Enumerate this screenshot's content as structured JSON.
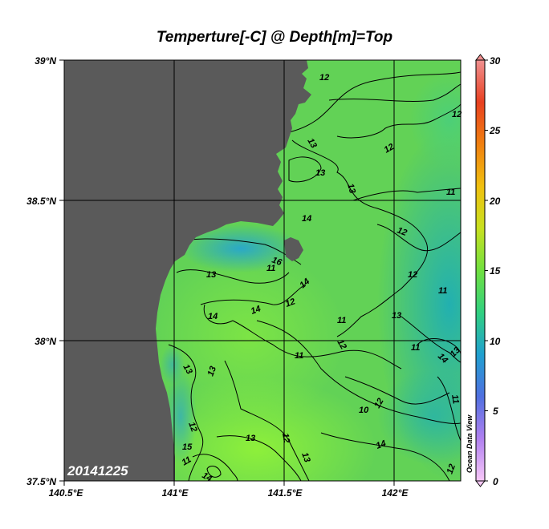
{
  "title": "Temperture[-C] @ Depth[m]=Top",
  "date_stamp": "20141225",
  "credit": "Ocean Data View",
  "lat_labels": [
    "39°N",
    "38.5°N",
    "38°N",
    "37.5°N"
  ],
  "lon_labels": [
    "140.5°E",
    "141°E",
    "141.5°E",
    "142°E"
  ],
  "colorbar": {
    "labels": [
      "30",
      "25",
      "20",
      "15",
      "10",
      "5",
      "0"
    ],
    "range": [
      0,
      30
    ],
    "stops": [
      "#f8c8f8",
      "#b080f0",
      "#5070e0",
      "#20a0d0",
      "#30d080",
      "#70e040",
      "#c8e020",
      "#f0c010",
      "#f08010",
      "#e84020",
      "#f09090"
    ]
  },
  "map_extent": {
    "lon": [
      140.5,
      142.3
    ],
    "lat": [
      37.5,
      39.0
    ]
  },
  "contour_labels": [
    "12",
    "12",
    "13",
    "13",
    "12",
    "13",
    "11",
    "14",
    "12",
    "11",
    "12",
    "13",
    "14",
    "11",
    "12",
    "14",
    "14",
    "11",
    "13",
    "12",
    "11",
    "14",
    "13",
    "11",
    "13",
    "13",
    "12",
    "11",
    "10",
    "12",
    "12",
    "13",
    "15",
    "14",
    "13",
    "12",
    "11",
    "14",
    "16"
  ],
  "colors": {
    "land": "#5a5a5a",
    "ocean_base": "#7be04a",
    "grid": "#000000"
  }
}
